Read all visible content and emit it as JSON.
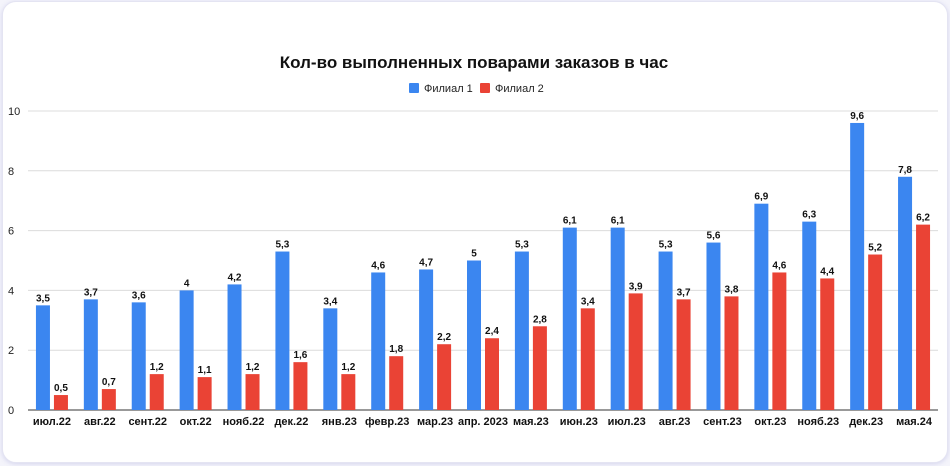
{
  "chart_data": {
    "type": "bar",
    "title": "Кол-во выполненных поварами заказов в час",
    "categories": [
      "июл.22",
      "авг.22",
      "сент.22",
      "окт.22",
      "нояб.22",
      "дек.22",
      "янв.23",
      "февр.23",
      "мар.23",
      "апр. 2023",
      "мая.23",
      "июн.23",
      "июл.23",
      "авг.23",
      "сент.23",
      "окт.23",
      "нояб.23",
      "дек.23",
      "мая.24"
    ],
    "series": [
      {
        "name": "Филиал 1",
        "color": "#3b86f0",
        "values": [
          3.5,
          3.7,
          3.6,
          4,
          4.2,
          5.3,
          3.4,
          4.6,
          4.7,
          5,
          5.3,
          6.1,
          6.1,
          5.3,
          5.6,
          6.9,
          6.3,
          9.6,
          7.8
        ],
        "labels": [
          "3,5",
          "3,7",
          "3,6",
          "4",
          "4,2",
          "5,3",
          "3,4",
          "4,6",
          "4,7",
          "5",
          "5,3",
          "6,1",
          "6,1",
          "5,3",
          "5,6",
          "6,9",
          "6,3",
          "9,6",
          "7,8"
        ]
      },
      {
        "name": "Филиал 2",
        "color": "#ea4335",
        "values": [
          0.5,
          0.7,
          1.2,
          1.1,
          1.2,
          1.6,
          1.2,
          1.8,
          2.2,
          2.4,
          2.8,
          3.4,
          3.9,
          3.7,
          3.8,
          4.6,
          4.4,
          5.2,
          6.2
        ],
        "labels": [
          "0,5",
          "0,7",
          "1,2",
          "1,1",
          "1,2",
          "1,6",
          "1,2",
          "1,8",
          "2,2",
          "2,4",
          "2,8",
          "3,4",
          "3,9",
          "3,7",
          "3,8",
          "4,6",
          "4,4",
          "5,2",
          "6,2"
        ]
      }
    ],
    "ylim": [
      0,
      10
    ],
    "yticks": [
      "0",
      "2",
      "4",
      "6",
      "8",
      "10"
    ],
    "grid": true,
    "legend_position": "top-center"
  }
}
